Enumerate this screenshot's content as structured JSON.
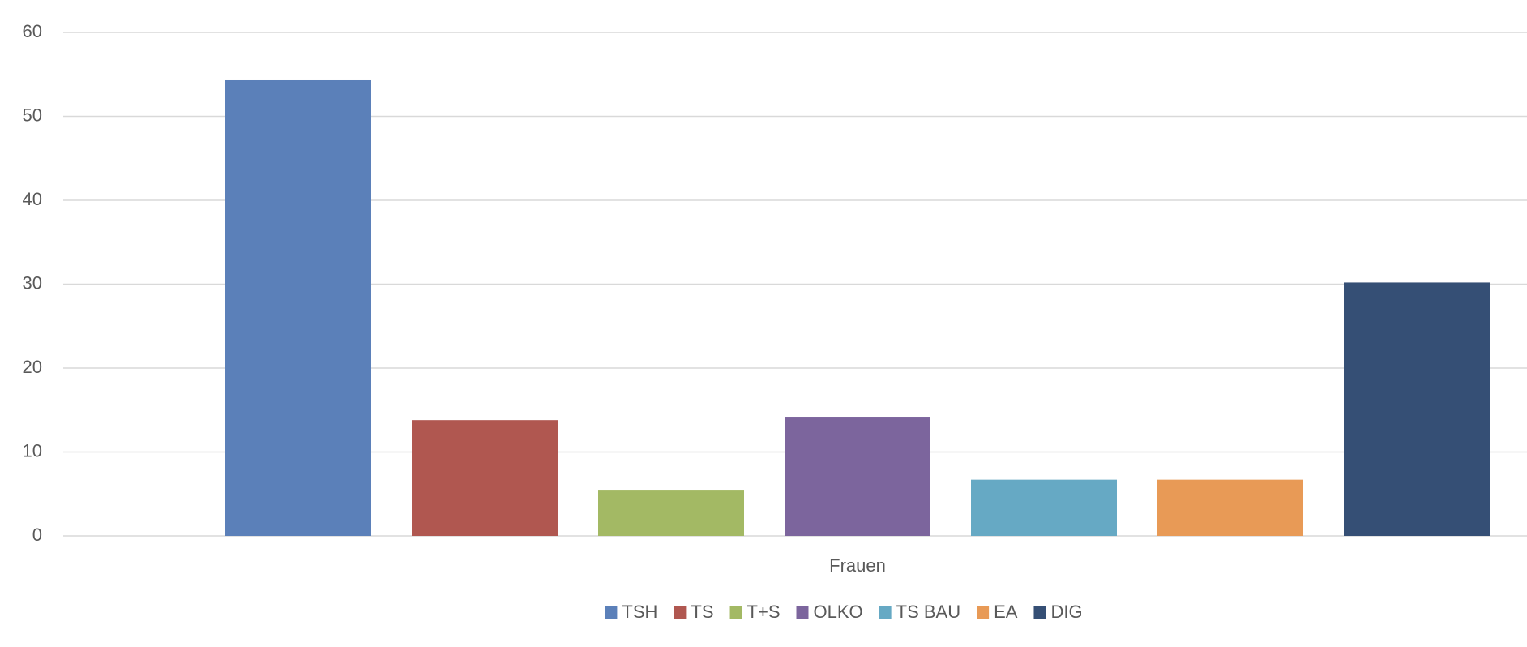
{
  "chart_data": {
    "type": "bar",
    "categories": [
      "Frauen"
    ],
    "series": [
      {
        "name": "TSH",
        "color": "#5b80b9",
        "values": [
          54.3
        ]
      },
      {
        "name": "TS",
        "color": "#b05750",
        "values": [
          13.8
        ]
      },
      {
        "name": "T+S",
        "color": "#a3b964",
        "values": [
          5.5
        ]
      },
      {
        "name": "OLKO",
        "color": "#7c659d",
        "values": [
          14.2
        ]
      },
      {
        "name": "TS BAU",
        "color": "#66a9c4",
        "values": [
          6.7
        ]
      },
      {
        "name": "EA",
        "color": "#e89a56",
        "values": [
          6.7
        ]
      },
      {
        "name": "DIG",
        "color": "#354f75",
        "values": [
          30.2
        ]
      }
    ],
    "ylim": [
      0,
      60
    ],
    "yticks": [
      0,
      10,
      20,
      30,
      40,
      50,
      60
    ],
    "grid": true,
    "legend": "bottom"
  }
}
